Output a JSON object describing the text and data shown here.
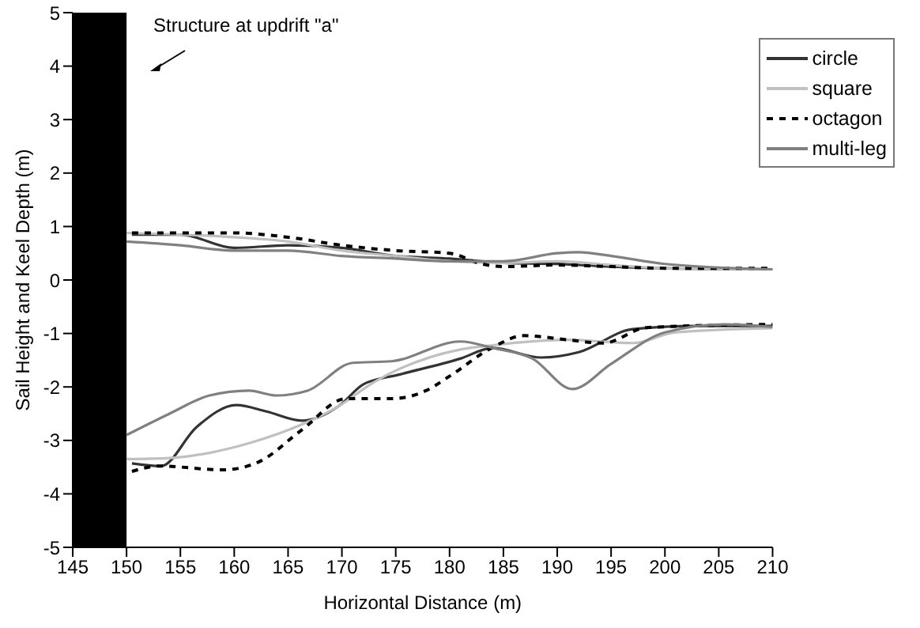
{
  "chart_data": {
    "type": "line",
    "xlabel": "Horizontal Distance (m)",
    "ylabel": "Sail Height and Keel Depth (m)",
    "xlim": [
      145,
      210
    ],
    "xticks": [
      145,
      150,
      155,
      160,
      165,
      170,
      175,
      180,
      185,
      190,
      195,
      200,
      205,
      210
    ],
    "ylim": [
      -5,
      5
    ],
    "yticks": [
      -5,
      -4,
      -3,
      -2,
      -1,
      0,
      1,
      2,
      3,
      4,
      5
    ],
    "legend": "top right",
    "grid": false,
    "marker": "none",
    "annotations": [
      "Structure at updrift \"a\""
    ],
    "bands": [
      {
        "axis": "x",
        "from": 145,
        "to": 150,
        "color": "#000000"
      }
    ],
    "series": [
      {
        "name": "circle",
        "color": "#333333",
        "line_style": "solid",
        "x": [
          150.5,
          155,
          160,
          165,
          170,
          175,
          180,
          185,
          190,
          195,
          200,
          210
        ],
        "values": [
          0.85,
          0.85,
          0.6,
          0.65,
          0.6,
          0.45,
          0.4,
          0.32,
          0.3,
          0.25,
          0.22,
          0.2
        ]
      },
      {
        "name": "square",
        "color": "#c0c0c0",
        "line_style": "solid",
        "x": [
          150,
          160,
          165,
          170,
          175,
          180,
          185,
          190,
          195,
          200,
          210
        ],
        "values": [
          0.88,
          0.8,
          0.72,
          0.55,
          0.45,
          0.35,
          0.32,
          0.35,
          0.28,
          0.22,
          0.2
        ]
      },
      {
        "name": "octagon",
        "color": "#000000",
        "line_style": "dashed",
        "x": [
          150.5,
          160,
          165,
          170,
          175,
          180,
          183,
          185,
          190,
          195,
          200,
          210
        ],
        "values": [
          0.88,
          0.88,
          0.8,
          0.65,
          0.55,
          0.5,
          0.3,
          0.25,
          0.28,
          0.25,
          0.22,
          0.22
        ]
      },
      {
        "name": "multi-leg",
        "color": "#808080",
        "line_style": "solid",
        "x": [
          150,
          155,
          160,
          165,
          170,
          175,
          180,
          185,
          190,
          192,
          195,
          200,
          210
        ],
        "values": [
          0.72,
          0.65,
          0.55,
          0.55,
          0.45,
          0.4,
          0.35,
          0.35,
          0.5,
          0.52,
          0.45,
          0.3,
          0.2
        ]
      },
      {
        "color": "#333333",
        "line_style": "solid",
        "x": [
          150.5,
          153.2,
          156.5,
          160.2,
          163,
          166.3,
          169.7,
          172,
          175.3,
          181,
          184,
          188.5,
          192,
          197,
          203,
          210
        ],
        "values": [
          -3.43,
          -3.48,
          -2.75,
          -2.34,
          -2.46,
          -2.63,
          -2.36,
          -1.95,
          -1.77,
          -1.47,
          -1.27,
          -1.45,
          -1.35,
          -0.92,
          -0.86,
          -0.86
        ]
      },
      {
        "color": "#c0c0c0",
        "line_style": "solid",
        "x": [
          150,
          154,
          161.4,
          166.3,
          169.7,
          172.9,
          181,
          184,
          191,
          197,
          201,
          210
        ],
        "values": [
          -3.35,
          -3.33,
          -3.05,
          -2.7,
          -2.36,
          -1.92,
          -1.3,
          -1.22,
          -1.12,
          -1.18,
          -0.98,
          -0.9
        ]
      },
      {
        "color": "#000000",
        "line_style": "dashed",
        "x": [
          150.5,
          153,
          159,
          162.3,
          166.3,
          170.4,
          174.6,
          177.8,
          180,
          184,
          186.9,
          191,
          194.3,
          198.3,
          210
        ],
        "values": [
          -3.58,
          -3.48,
          -3.55,
          -3.4,
          -2.8,
          -2.22,
          -2.22,
          -2.07,
          -1.8,
          -1.26,
          -1.04,
          -1.12,
          -1.18,
          -0.89,
          -0.83
        ]
      },
      {
        "color": "#808080",
        "line_style": "solid",
        "x": [
          150,
          154,
          157.7,
          161.4,
          163.9,
          166.8,
          171,
          174.6,
          181,
          184,
          187.7,
          191.4,
          195,
          200,
          205.5,
          210
        ],
        "values": [
          -2.9,
          -2.5,
          -2.16,
          -2.07,
          -2.16,
          -2.07,
          -1.55,
          -1.52,
          -1.15,
          -1.27,
          -1.47,
          -2.04,
          -1.57,
          -0.98,
          -0.83,
          -0.88
        ]
      }
    ]
  }
}
